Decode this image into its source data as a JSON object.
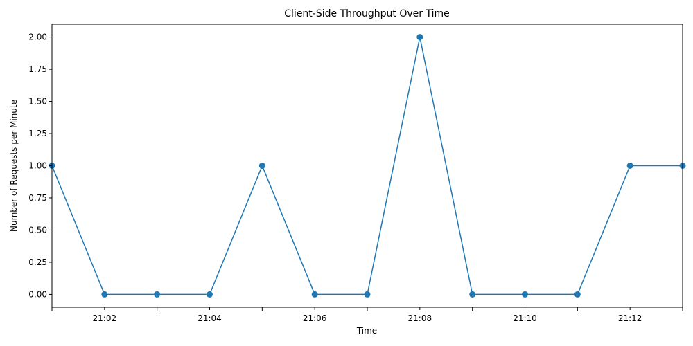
{
  "chart_data": {
    "type": "line",
    "title": "Client-Side Throughput Over Time",
    "xlabel": "Time",
    "ylabel": "Number of Requests per Minute",
    "x": [
      "21:01",
      "21:02",
      "21:03",
      "21:04",
      "21:05",
      "21:06",
      "21:07",
      "21:08",
      "21:09",
      "21:10",
      "21:11",
      "21:12",
      "21:13"
    ],
    "x_tick_labels": [
      "21:02",
      "21:04",
      "21:06",
      "21:08",
      "21:10",
      "21:12"
    ],
    "series": [
      {
        "values": [
          1,
          0,
          0,
          0,
          1,
          0,
          0,
          2,
          0,
          0,
          0,
          1,
          1
        ],
        "color": "#1f77b4",
        "marker": "circle"
      }
    ],
    "y_ticks": [
      "0.00",
      "0.25",
      "0.50",
      "0.75",
      "1.00",
      "1.25",
      "1.50",
      "1.75",
      "2.00"
    ],
    "ylim": [
      -0.1,
      2.1
    ],
    "grid": false,
    "legend": "none"
  }
}
